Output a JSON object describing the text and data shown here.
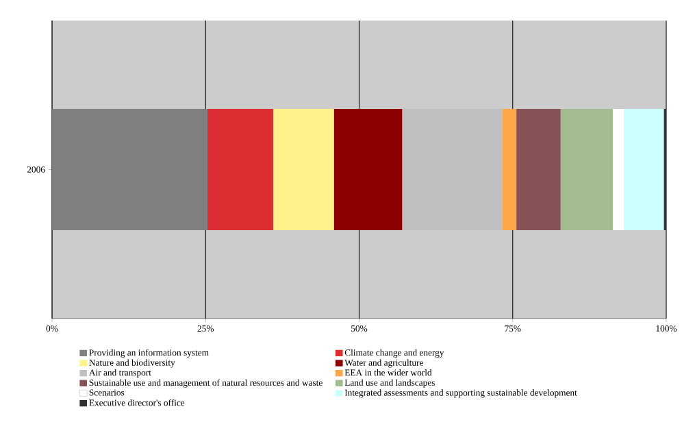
{
  "chart_data": {
    "type": "bar",
    "orientation": "horizontal",
    "stacked": true,
    "categories": [
      "2006"
    ],
    "series": [
      {
        "name": "Providing an information system",
        "color": "#808080",
        "values": [
          25.3
        ]
      },
      {
        "name": "Climate change and energy",
        "color": "#de2d32",
        "values": [
          10.7
        ]
      },
      {
        "name": "Nature and biodiversity",
        "color": "#fef38b",
        "values": [
          9.9
        ]
      },
      {
        "name": "Water and agriculture",
        "color": "#8e0000",
        "values": [
          11.1
        ]
      },
      {
        "name": "Air and transport",
        "color": "#c0c0c0",
        "values": [
          16.3
        ]
      },
      {
        "name": "EEA in the wider world",
        "color": "#fda64a",
        "values": [
          2.3
        ]
      },
      {
        "name": "Sustainable use and management of natural resources and waste",
        "color": "#865456",
        "values": [
          7.2
        ]
      },
      {
        "name": "Land use and landscapes",
        "color": "#a2bc8f",
        "values": [
          8.5
        ]
      },
      {
        "name": "Scenarios",
        "color": "#ffffff",
        "values": [
          1.8
        ]
      },
      {
        "name": "Integrated assessments and supporting sustainable development",
        "color": "#ccffff",
        "values": [
          6.5
        ]
      },
      {
        "name": "Executive director's office",
        "color": "#2e3130",
        "values": [
          0.4
        ]
      }
    ],
    "xlim": [
      0,
      100
    ],
    "xticks": [
      {
        "value": 0,
        "label": "0%"
      },
      {
        "value": 25,
        "label": "25%"
      },
      {
        "value": 50,
        "label": "50%"
      },
      {
        "value": 75,
        "label": "75%"
      },
      {
        "value": 100,
        "label": "100%"
      }
    ],
    "grid": "x",
    "legend": "bottom"
  }
}
